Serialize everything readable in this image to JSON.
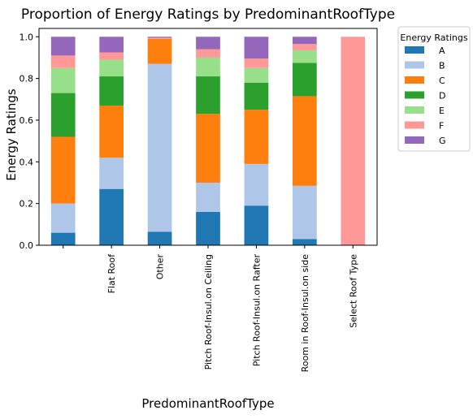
{
  "chart_data": {
    "type": "bar",
    "stacked": true,
    "title": "Proportion of Energy Ratings by PredominantRoofType",
    "xlabel": "PredominantRoofType",
    "ylabel": "Energy Ratings",
    "ylim": [
      0,
      1.04
    ],
    "yticks": [
      "0.0",
      "0.2",
      "0.4",
      "0.6",
      "0.8",
      "1.0"
    ],
    "grid": false,
    "legend_title": "Energy Ratings",
    "legend_position": "outside-right",
    "categories": [
      "",
      "Flat Roof",
      "Other",
      "Pitch Roof-Insul.on Ceiling",
      "Pitch Roof-Insul.on Rafter",
      "Room in Roof-Insul.on side",
      "Select Roof Type"
    ],
    "series": [
      {
        "name": "A",
        "color": "#1f77b4",
        "values": [
          0.06,
          0.27,
          0.065,
          0.16,
          0.19,
          0.03,
          0
        ]
      },
      {
        "name": "B",
        "color": "#aec7e8",
        "values": [
          0.14,
          0.15,
          0.805,
          0.14,
          0.2,
          0.255,
          0
        ]
      },
      {
        "name": "C",
        "color": "#ff7f0e",
        "values": [
          0.32,
          0.25,
          0.12,
          0.33,
          0.26,
          0.43,
          0
        ]
      },
      {
        "name": "D",
        "color": "#2ca02c",
        "values": [
          0.21,
          0.14,
          0,
          0.18,
          0.13,
          0.16,
          0
        ]
      },
      {
        "name": "E",
        "color": "#98df8a",
        "values": [
          0.12,
          0.08,
          0,
          0.09,
          0.07,
          0.06,
          0
        ]
      },
      {
        "name": "F",
        "color": "#ff9896",
        "values": [
          0.06,
          0.035,
          0.005,
          0.04,
          0.045,
          0.03,
          1.0
        ]
      },
      {
        "name": "G",
        "color": "#9467bd",
        "values": [
          0.09,
          0.075,
          0.005,
          0.06,
          0.105,
          0.035,
          0
        ]
      }
    ]
  }
}
